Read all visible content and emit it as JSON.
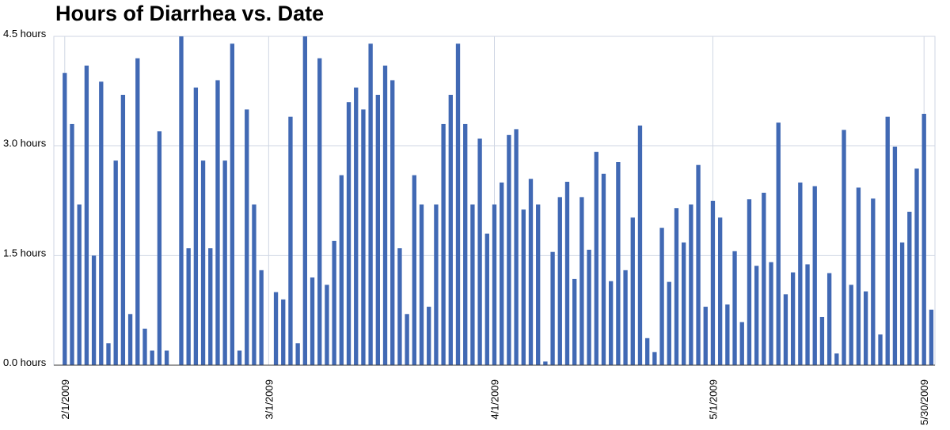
{
  "chart_data": {
    "type": "bar",
    "title": "Hours of Diarrhea vs. Date",
    "xlabel": "",
    "ylabel": "",
    "ylim": [
      0,
      4.5
    ],
    "y_ticks": [
      "0.0 hours",
      "1.5 hours",
      "3.0 hours",
      "4.5 hours"
    ],
    "y_tick_values": [
      0,
      1.5,
      3.0,
      4.5
    ],
    "x_start": "2009-01-31",
    "x_end": "2009-05-31",
    "x_ticks": [
      "2/1/2009",
      "3/1/2009",
      "4/1/2009",
      "5/1/2009",
      "5/30/2009"
    ],
    "x_tick_dates": [
      "2009-02-01",
      "2009-03-01",
      "2009-04-01",
      "2009-05-01",
      "2009-05-30"
    ],
    "grid": true,
    "bar_color": "#4169b4",
    "dates": [
      "2009-02-01",
      "2009-02-02",
      "2009-02-03",
      "2009-02-04",
      "2009-02-05",
      "2009-02-06",
      "2009-02-07",
      "2009-02-08",
      "2009-02-09",
      "2009-02-10",
      "2009-02-11",
      "2009-02-12",
      "2009-02-13",
      "2009-02-14",
      "2009-02-15",
      "2009-02-16",
      "2009-02-17",
      "2009-02-18",
      "2009-02-19",
      "2009-02-20",
      "2009-02-21",
      "2009-02-22",
      "2009-02-23",
      "2009-02-24",
      "2009-02-25",
      "2009-02-26",
      "2009-02-27",
      "2009-02-28",
      "2009-03-01",
      "2009-03-02",
      "2009-03-03",
      "2009-03-04",
      "2009-03-05",
      "2009-03-06",
      "2009-03-07",
      "2009-03-08",
      "2009-03-09",
      "2009-03-10",
      "2009-03-11",
      "2009-03-12",
      "2009-03-13",
      "2009-03-14",
      "2009-03-15",
      "2009-03-16",
      "2009-03-17",
      "2009-03-18",
      "2009-03-19",
      "2009-03-20",
      "2009-03-21",
      "2009-03-22",
      "2009-03-23",
      "2009-03-24",
      "2009-03-25",
      "2009-03-26",
      "2009-03-27",
      "2009-03-28",
      "2009-03-29",
      "2009-03-30",
      "2009-03-31",
      "2009-04-01",
      "2009-04-02",
      "2009-04-03",
      "2009-04-04",
      "2009-04-05",
      "2009-04-06",
      "2009-04-07",
      "2009-04-08",
      "2009-04-09",
      "2009-04-10",
      "2009-04-11",
      "2009-04-12",
      "2009-04-13",
      "2009-04-14",
      "2009-04-15",
      "2009-04-16",
      "2009-04-17",
      "2009-04-18",
      "2009-04-19",
      "2009-04-20",
      "2009-04-21",
      "2009-04-22",
      "2009-04-23",
      "2009-04-24",
      "2009-04-25",
      "2009-04-26",
      "2009-04-27",
      "2009-04-28",
      "2009-04-29",
      "2009-04-30",
      "2009-05-01",
      "2009-05-02",
      "2009-05-03",
      "2009-05-04",
      "2009-05-05",
      "2009-05-06",
      "2009-05-07",
      "2009-05-08",
      "2009-05-09",
      "2009-05-10",
      "2009-05-11",
      "2009-05-12",
      "2009-05-13",
      "2009-05-14",
      "2009-05-15",
      "2009-05-16",
      "2009-05-17",
      "2009-05-18",
      "2009-05-19",
      "2009-05-20",
      "2009-05-21",
      "2009-05-22",
      "2009-05-23",
      "2009-05-24",
      "2009-05-25",
      "2009-05-26",
      "2009-05-27",
      "2009-05-28",
      "2009-05-29",
      "2009-05-30",
      "2009-05-31"
    ],
    "values": [
      4.0,
      3.3,
      2.2,
      4.1,
      1.5,
      3.88,
      0.3,
      2.8,
      3.7,
      0.7,
      4.2,
      0.5,
      0.2,
      3.2,
      0.2,
      0,
      4.5,
      1.6,
      3.8,
      2.8,
      1.6,
      3.9,
      2.8,
      4.4,
      0.2,
      3.5,
      2.2,
      1.3,
      0,
      1.0,
      0.9,
      3.4,
      0.3,
      4.5,
      1.2,
      4.2,
      1.1,
      1.7,
      2.6,
      3.6,
      3.8,
      3.5,
      4.4,
      3.7,
      4.1,
      3.9,
      1.6,
      0.7,
      2.6,
      2.2,
      0.8,
      2.2,
      3.3,
      3.7,
      4.4,
      3.3,
      2.2,
      3.1,
      1.8,
      2.2,
      2.5,
      3.15,
      3.23,
      2.13,
      2.55,
      2.2,
      0.05,
      1.55,
      2.3,
      2.51,
      1.18,
      2.3,
      1.58,
      2.92,
      2.62,
      1.15,
      2.78,
      1.3,
      2.02,
      3.28,
      0.37,
      0.18,
      1.88,
      1.14,
      2.15,
      1.68,
      2.2,
      2.74,
      0.8,
      2.25,
      2.02,
      0.83,
      1.56,
      0.59,
      2.27,
      1.36,
      2.36,
      1.41,
      3.32,
      0.97,
      1.27,
      2.5,
      1.38,
      2.45,
      0.66,
      1.26,
      0.16,
      3.22,
      1.1,
      2.43,
      1.01,
      2.28,
      0.42,
      3.4,
      2.99,
      1.68,
      2.1,
      2.69,
      3.44,
      0.76
    ]
  }
}
